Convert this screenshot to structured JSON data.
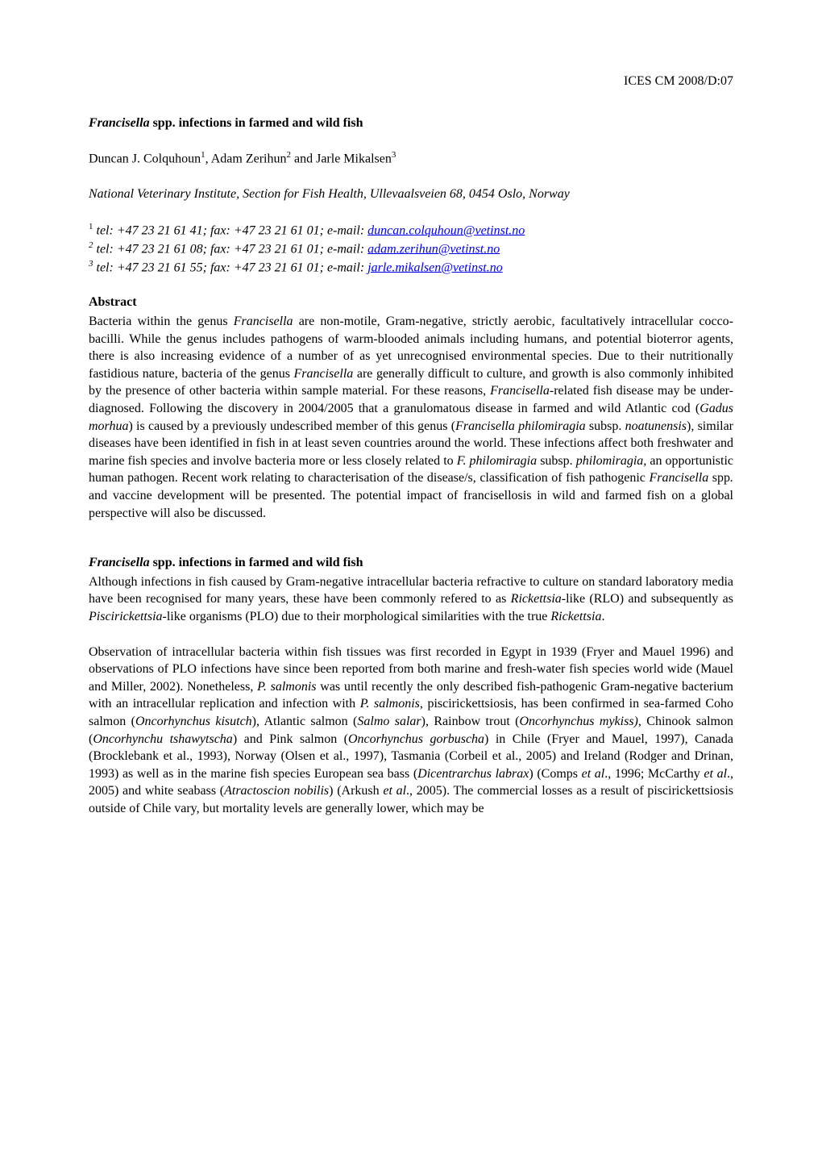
{
  "header": {
    "doc_id": "ICES  CM 2008/D:07"
  },
  "title": {
    "prefix_italic": "Francisella",
    "rest": " spp. infections in farmed and wild fish"
  },
  "authors": {
    "a1_name": "Duncan J. Colquhoun",
    "a1_sup": "1",
    "sep1": ", ",
    "a2_name": "Adam Zerihun",
    "a2_sup": "2",
    "sep2": " and ",
    "a3_name": "Jarle Mikalsen",
    "a3_sup": "3"
  },
  "affiliation": "National Veterinary Institute, Section for Fish Health, Ullevaalsveien 68, 0454 Oslo, Norway",
  "contacts": {
    "c1_sup": "1",
    "c1_text": " tel: +47 23 21 61 41;  fax: +47 23 21 61 01;  e-mail: ",
    "c1_link": "duncan.colquhoun@vetinst.no",
    "c2_sup": "2",
    "c2_text": " tel: +47 23 21 61 08;  fax: +47 23 21 61 01;  e-mail: ",
    "c2_link": "adam.zerihun@vetinst.no",
    "c3_sup": "3",
    "c3_text": " tel: +47 23 21 61 55;  fax: +47 23 21 61 01; e-mail: ",
    "c3_link": "jarle.mikalsen@vetinst.no"
  },
  "abstract": {
    "heading": "Abstract",
    "t1": "Bacteria within the genus ",
    "i1": "Francisella",
    "t2": " are non-motile, Gram-negative, strictly aerobic, facultatively intracellular cocco-bacilli. While the genus includes pathogens of warm-blooded animals including humans, and potential bioterror agents, there is also increasing evidence of a number of as yet unrecognised environmental species. Due to their nutritionally fastidious nature, bacteria of the genus ",
    "i2": "Francisella",
    "t3": " are generally difficult to culture, and growth is also commonly inhibited by the presence of other bacteria within sample material. For these reasons, ",
    "i3": "Francisella",
    "t4": "-related fish disease may be under-diagnosed. Following the discovery in 2004/2005 that a granulomatous disease in farmed and wild Atlantic cod (",
    "i4": "Gadus morhua",
    "t5": ") is caused by a previously undescribed member of this genus (",
    "i5": "Francisella philomiragia",
    "t6": " subsp. ",
    "i6": "noatunensis",
    "t7": "), similar diseases have been identified in fish in at least seven countries around the world. These infections affect both freshwater and marine fish species and involve bacteria more or less closely related to ",
    "i7": "F. philomiragia",
    "t8": " subsp. ",
    "i8": "philomiragia,",
    "t9": " an opportunistic human pathogen. Recent work relating to characterisation of the disease/s, classification of fish pathogenic ",
    "i9": "Francisella",
    "t10": " spp",
    "i10": ".",
    "t11": " and vaccine development will be presented. The potential impact of francisellosis in wild and farmed fish on a global perspective will also be discussed."
  },
  "section2": {
    "heading_italic": "Francisella",
    "heading_rest": " spp. infections in farmed and wild fish",
    "p1_t1": "Although infections in fish caused by Gram-negative intracellular bacteria refractive to culture on standard laboratory media have been recognised for many years, these have been commonly refered to as ",
    "p1_i1": "Rickettsia",
    "p1_t2": "-like (RLO) and subsequently as ",
    "p1_i2": "Piscirickettsia",
    "p1_t3": "-like organisms (PLO) due to their morphological similarities with the true ",
    "p1_i3": "Rickettsia",
    "p1_t4": ".",
    "p2_t1": "Observation of intracellular bacteria within fish tissues was first recorded in Egypt in 1939 (Fryer and Mauel 1996) and observations of PLO infections have since been reported from both marine and fresh-water fish species world wide (Mauel and Miller, 2002).  Nonetheless, ",
    "p2_i1": "P. salmonis",
    "p2_t2": " was until recently the only described fish-pathogenic Gram-negative bacterium with an intracellular replication and infection with ",
    "p2_i2": "P. salmonis",
    "p2_t3": ", piscirickettsiosis, has been confirmed in sea-farmed Coho salmon (",
    "p2_i3": "Oncorhynchus kisutch",
    "p2_t4": "), Atlantic salmon (",
    "p2_i4": "Salmo salar",
    "p2_t5": "), Rainbow trout (",
    "p2_i5": "Oncorhynchus mykiss)",
    "p2_t6": ", Chinook salmon (",
    "p2_i6": "Oncorhynchu tshawytscha",
    "p2_t7": ") and Pink salmon (",
    "p2_i7": "Oncorhynchus gorbuscha",
    "p2_t8": ") in Chile (Fryer and Mauel, 1997), Canada (Brocklebank et al., 1993), Norway (Olsen et al., 1997), Tasmania (Corbeil et al., 2005) and Ireland (Rodger and Drinan, 1993) as well as in the marine fish species European sea bass (",
    "p2_i8": "Dicentrarchus labrax",
    "p2_t9": ") (Comps ",
    "p2_i9": "et al",
    "p2_t10": "., 1996; McCarthy ",
    "p2_i10": "et al",
    "p2_t11": "., 2005) and white seabass (",
    "p2_i11": "Atractoscion nobilis",
    "p2_t12": ") (Arkush ",
    "p2_i12": "et al",
    "p2_t13": "., 2005).  The commercial losses as a result of piscirickettsiosis outside of Chile vary, but mortality levels are generally lower, which may be"
  },
  "colors": {
    "link": "#0000ee",
    "text": "#000000",
    "bg": "#ffffff"
  }
}
